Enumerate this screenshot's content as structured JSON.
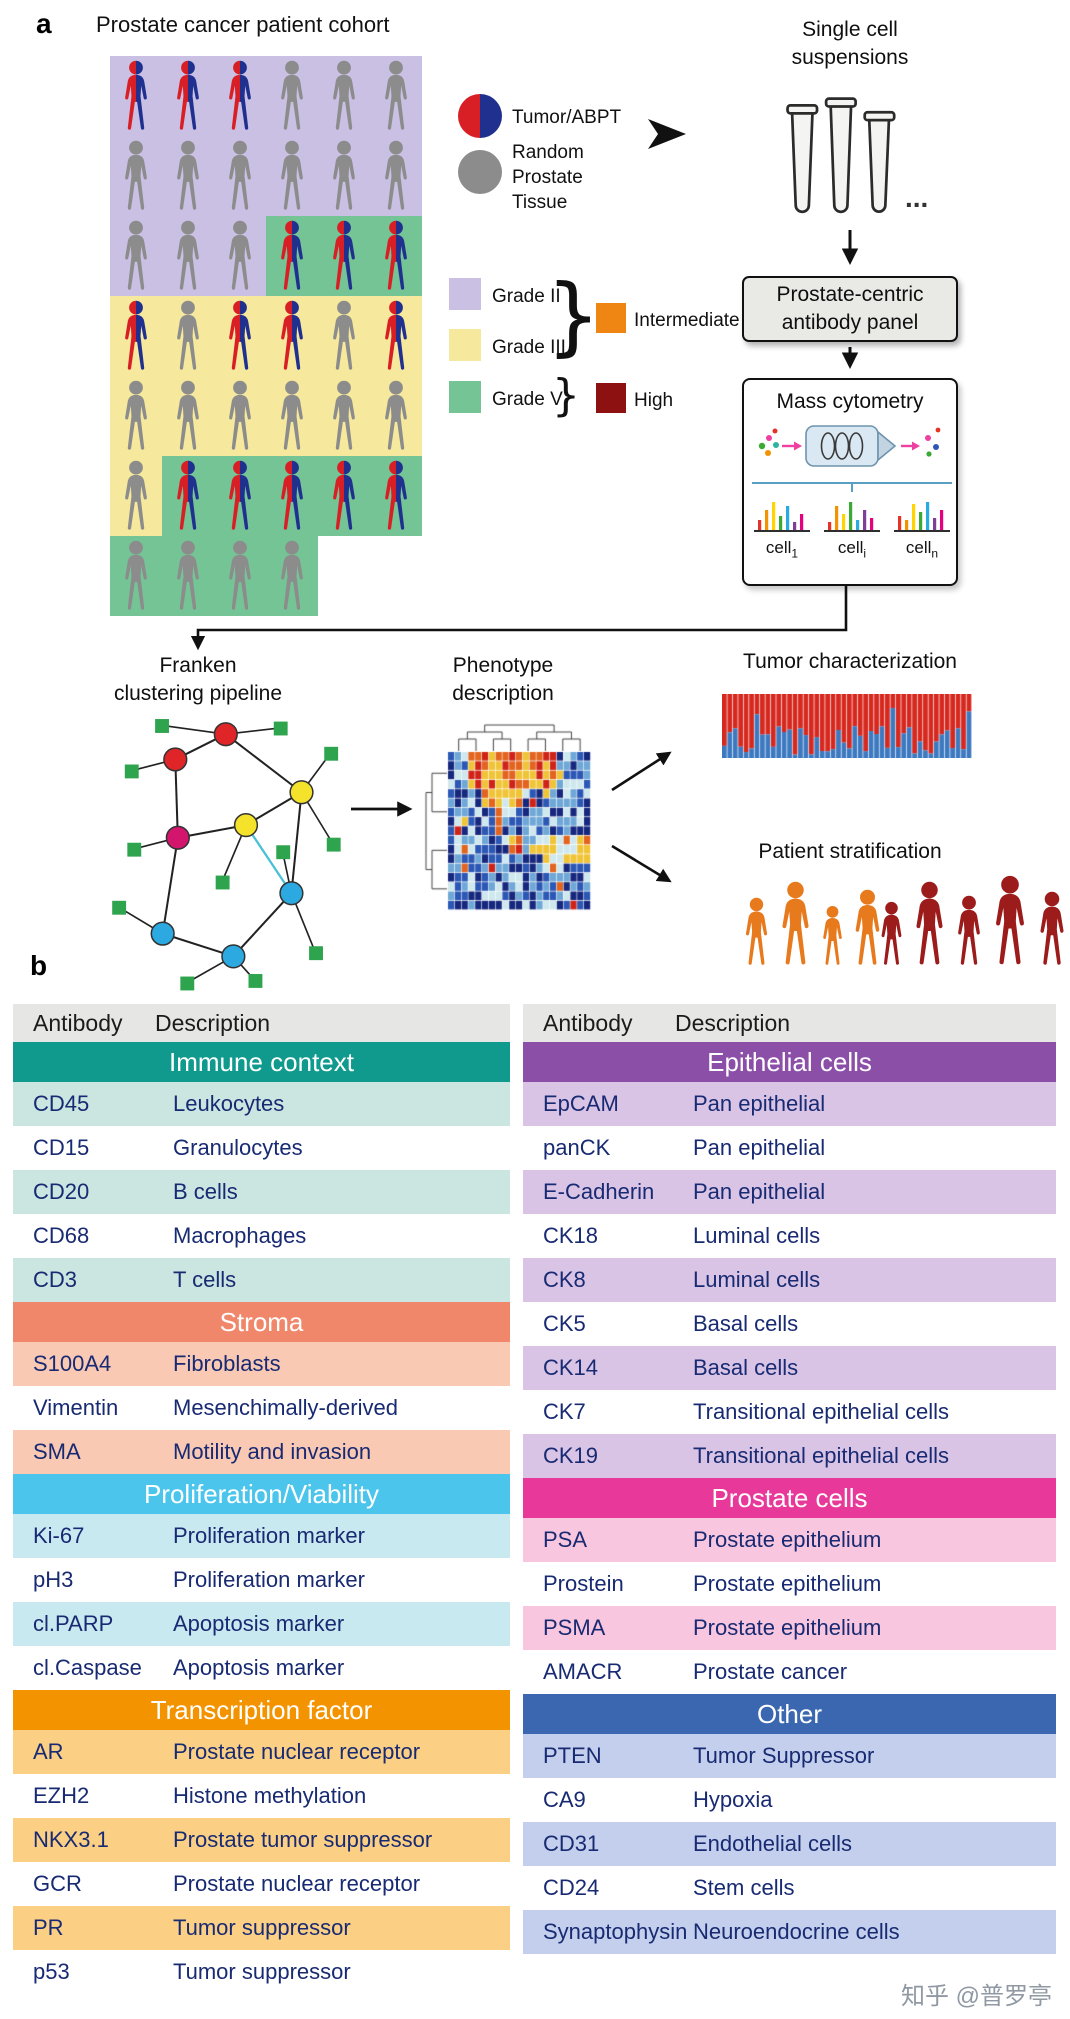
{
  "watermark": "知乎 @普罗亭",
  "panel_a": {
    "label": "a",
    "cohort_title": "Prostate cancer patient cohort",
    "legend": {
      "tumor_label": "Tumor/ABPT",
      "random_label": "Random\nProstate\nTissue",
      "grade2_label": "Grade II",
      "grade3_label": "Grade III",
      "grade5_label": "Grade V",
      "intermediate_label": "Intermediate",
      "high_label": "High",
      "brace_glyph": "}",
      "intermediate_color": "#ef8512",
      "high_color": "#8e1111",
      "grade2_color": "#c9c0e4",
      "grade3_color": "#f6e89c",
      "grade5_color": "#74c495",
      "tumor_red": "#d81f26",
      "tumor_blue": "#20308f",
      "random_gray": "#8c8c8c"
    },
    "cohort_colors": {
      "p": "#c9c0e4",
      "y": "#f6e89c",
      "g": "#74c495"
    },
    "cohort_rows": [
      [
        "pT",
        "pT",
        "pT",
        "pG",
        "pG",
        "pG"
      ],
      [
        "pG",
        "pG",
        "pG",
        "pG",
        "pG",
        "pG"
      ],
      [
        "pG",
        "pG",
        "pG",
        "gT",
        "gT",
        "gT"
      ],
      [
        "yT",
        "yG",
        "yT",
        "yT",
        "yG",
        "yT"
      ],
      [
        "yG",
        "yG",
        "yG",
        "yG",
        "yG",
        "yG"
      ],
      [
        "yG",
        "gT",
        "gT",
        "gT",
        "gT",
        "gT"
      ],
      [
        "gG",
        "gG",
        "gG",
        "gG",
        "..",
        ".."
      ]
    ],
    "single_cell_title": "Single cell\nsuspensions",
    "ellipsis": "...",
    "antibody_panel_title": "Prostate-centric\nantibody panel",
    "mass_cytometry_title": "Mass cytometry",
    "cell_labels": [
      {
        "base": "cell",
        "sub": "1"
      },
      {
        "base": "cell",
        "sub": "i"
      },
      {
        "base": "cell",
        "sub": "n"
      }
    ],
    "franken_title": "Franken\nclustering pipeline",
    "phenotype_title": "Phenotype\ndescription",
    "tumor_characterization_title": "Tumor characterization",
    "patient_stratification_title": "Patient stratification",
    "strat_groups": [
      {
        "color": "#e87a1e",
        "heights": [
          70,
          86,
          62,
          78
        ]
      },
      {
        "color": "#9c1b1b",
        "heights": [
          66,
          86,
          72,
          92,
          76
        ]
      }
    ]
  },
  "panel_b": {
    "label": "b",
    "tables": [
      {
        "id": "left",
        "headers": [
          "Antibody",
          "Description"
        ],
        "sections": [
          {
            "title": "Immune context",
            "header_bg": "#0f9a8d",
            "row_bg": "#cbe5e1",
            "rows": [
              [
                "CD45",
                "Leukocytes"
              ],
              [
                "CD15",
                "Granulocytes"
              ],
              [
                "CD20",
                "B cells"
              ],
              [
                "CD68",
                "Macrophages"
              ],
              [
                "CD3",
                "T cells"
              ]
            ]
          },
          {
            "title": "Stroma",
            "header_bg": "#f1876a",
            "row_bg": "#f9c9b4",
            "rows": [
              [
                "S100A4",
                "Fibroblasts"
              ],
              [
                "Vimentin",
                "Mesenchimally-derived"
              ],
              [
                "SMA",
                "Motility and invasion"
              ]
            ]
          },
          {
            "title": "Proliferation/Viability",
            "header_bg": "#4cc5ec",
            "row_bg": "#c9e9f1",
            "rows": [
              [
                "Ki-67",
                "Proliferation marker"
              ],
              [
                "pH3",
                "Proliferation marker"
              ],
              [
                "cl.PARP",
                "Apoptosis marker"
              ],
              [
                "cl.Caspase",
                "Apoptosis marker"
              ]
            ]
          },
          {
            "title": "Transcription factor",
            "header_bg": "#f49300",
            "row_bg": "#fbd085",
            "rows": [
              [
                "AR",
                "Prostate nuclear receptor"
              ],
              [
                "EZH2",
                "Histone methylation"
              ],
              [
                "NKX3.1",
                "Prostate tumor suppressor"
              ],
              [
                "GCR",
                "Prostate nuclear receptor"
              ],
              [
                "PR",
                "Tumor suppressor"
              ],
              [
                "p53",
                "Tumor suppressor"
              ]
            ]
          }
        ]
      },
      {
        "id": "right",
        "headers": [
          "Antibody",
          "Description"
        ],
        "sections": [
          {
            "title": "Epithelial cells",
            "header_bg": "#8c4fa8",
            "row_bg": "#d9c4e6",
            "rows": [
              [
                "EpCAM",
                "Pan epithelial"
              ],
              [
                "panCK",
                "Pan epithelial"
              ],
              [
                "E-Cadherin",
                "Pan epithelial"
              ],
              [
                "CK18",
                "Luminal cells"
              ],
              [
                "CK8",
                "Luminal cells"
              ],
              [
                "CK5",
                "Basal cells"
              ],
              [
                "CK14",
                "Basal cells"
              ],
              [
                "CK7",
                "Transitional epithelial cells"
              ],
              [
                "CK19",
                "Transitional epithelial cells"
              ]
            ]
          },
          {
            "title": "Prostate cells",
            "header_bg": "#e8399a",
            "row_bg": "#f9c6df",
            "rows": [
              [
                "PSA",
                "Prostate epithelium"
              ],
              [
                "Prostein",
                "Prostate epithelium"
              ],
              [
                "PSMA",
                "Prostate epithelium"
              ],
              [
                "AMACR",
                "Prostate cancer"
              ]
            ]
          },
          {
            "title": "Other",
            "header_bg": "#3a67b0",
            "row_bg": "#c3cfec",
            "rows": [
              [
                "PTEN",
                "Tumor Suppressor"
              ],
              [
                "CA9",
                "Hypoxia"
              ],
              [
                "CD31",
                "Endothelial cells"
              ],
              [
                "CD24",
                "Stem cells"
              ],
              [
                "Synaptophysin",
                "Neuroendocrine cells"
              ]
            ]
          }
        ]
      }
    ]
  }
}
